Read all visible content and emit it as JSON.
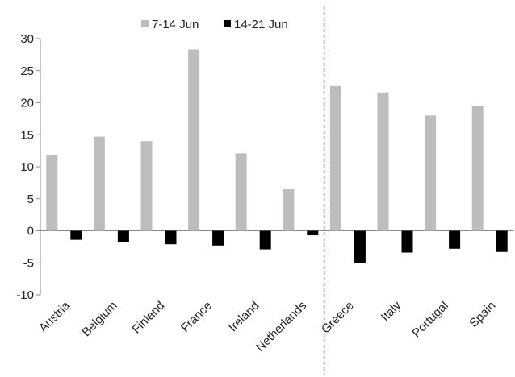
{
  "chart_data": {
    "type": "bar",
    "categories": [
      "Austria",
      "Belgium",
      "Finland",
      "France",
      "Ireland",
      "Netherlands",
      "Greece",
      "Italy",
      "Portugal",
      "Spain"
    ],
    "series": [
      {
        "name": "7-14 Jun",
        "values": [
          11.8,
          14.7,
          14.0,
          28.3,
          12.1,
          6.6,
          22.6,
          21.6,
          18.0,
          19.5
        ],
        "color": "#bdbdbd"
      },
      {
        "name": "14-21 Jun",
        "values": [
          -1.4,
          -1.8,
          -2.1,
          -2.3,
          -2.9,
          -0.7,
          -5.0,
          -3.4,
          -2.8,
          -3.3
        ],
        "color": "#000000"
      }
    ],
    "title": "",
    "xlabel": "",
    "ylabel": "",
    "ylim": [
      -10,
      30
    ],
    "yticks": [
      -10,
      -5,
      0,
      5,
      10,
      15,
      20,
      25,
      30
    ],
    "legend": "top-center",
    "grid": false,
    "divider_after_category": "Netherlands",
    "divider_color": "#4a6fa5"
  }
}
